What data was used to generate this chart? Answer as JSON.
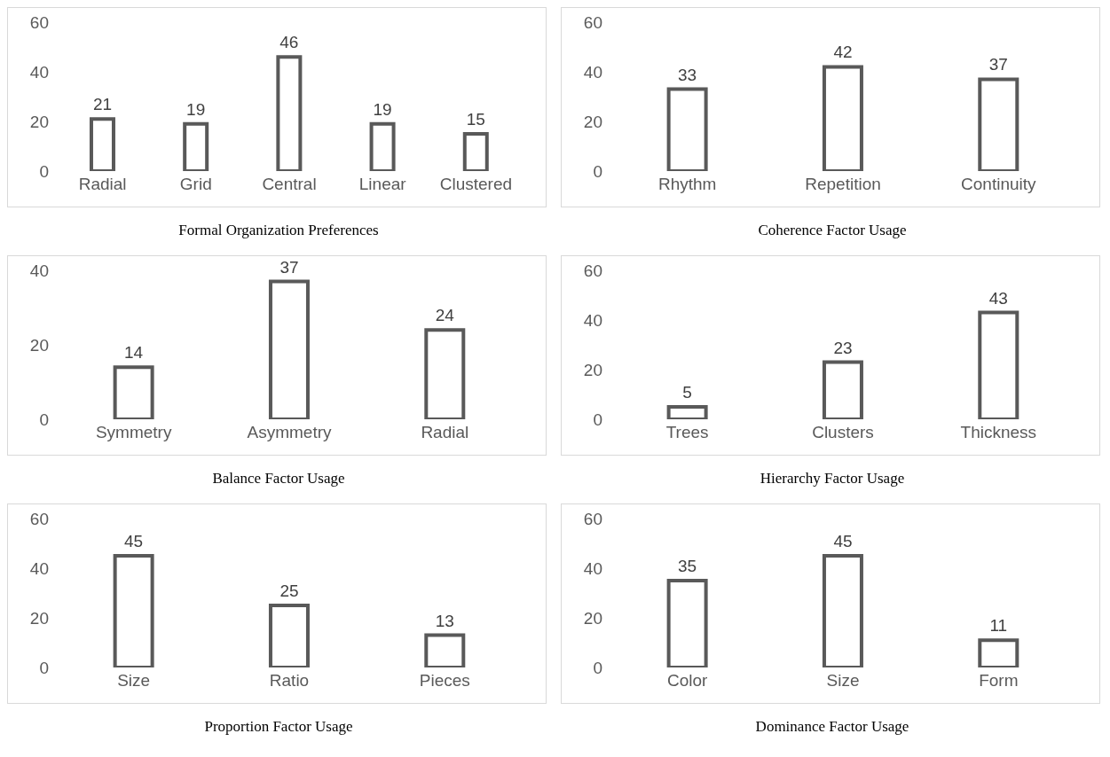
{
  "chart_data": [
    {
      "type": "bar",
      "title": "Formal Organization Preferences",
      "categories": [
        "Radial",
        "Grid",
        "Central",
        "Linear",
        "Clustered"
      ],
      "values": [
        21,
        19,
        46,
        19,
        15
      ],
      "color": "#595959",
      "ylim": [
        0,
        60
      ],
      "yticks": [
        0,
        20,
        40,
        60
      ],
      "data_labels": true,
      "grid": false
    },
    {
      "type": "bar",
      "title": "Coherence Factor Usage",
      "categories": [
        "Rhythm",
        "Repetition",
        "Continuity"
      ],
      "values": [
        33,
        42,
        37
      ],
      "color": "#595959",
      "ylim": [
        0,
        60
      ],
      "yticks": [
        0,
        20,
        40,
        60
      ],
      "data_labels": true,
      "grid": false
    },
    {
      "type": "bar",
      "title": "Balance Factor Usage",
      "categories": [
        "Symmetry",
        "Asymmetry",
        "Radial"
      ],
      "values": [
        14,
        37,
        24
      ],
      "color": "#595959",
      "ylim": [
        0,
        40
      ],
      "yticks": [
        0,
        20,
        40
      ],
      "data_labels": true,
      "grid": false
    },
    {
      "type": "bar",
      "title": "Hierarchy Factor Usage",
      "categories": [
        "Trees",
        "Clusters",
        "Thickness"
      ],
      "values": [
        5,
        23,
        43
      ],
      "color": "#595959",
      "ylim": [
        0,
        60
      ],
      "yticks": [
        0,
        20,
        40,
        60
      ],
      "data_labels": true,
      "grid": false
    },
    {
      "type": "bar",
      "title": "Proportion Factor Usage",
      "categories": [
        "Size",
        "Ratio",
        "Pieces"
      ],
      "values": [
        45,
        25,
        13
      ],
      "color": "#595959",
      "ylim": [
        0,
        60
      ],
      "yticks": [
        0,
        20,
        40,
        60
      ],
      "data_labels": true,
      "grid": false
    },
    {
      "type": "bar",
      "title": "Dominance Factor Usage",
      "categories": [
        "Color",
        "Size",
        "Form"
      ],
      "values": [
        35,
        45,
        11
      ],
      "color": "#595959",
      "ylim": [
        0,
        60
      ],
      "yticks": [
        0,
        20,
        40,
        60
      ],
      "data_labels": true,
      "grid": false
    }
  ]
}
